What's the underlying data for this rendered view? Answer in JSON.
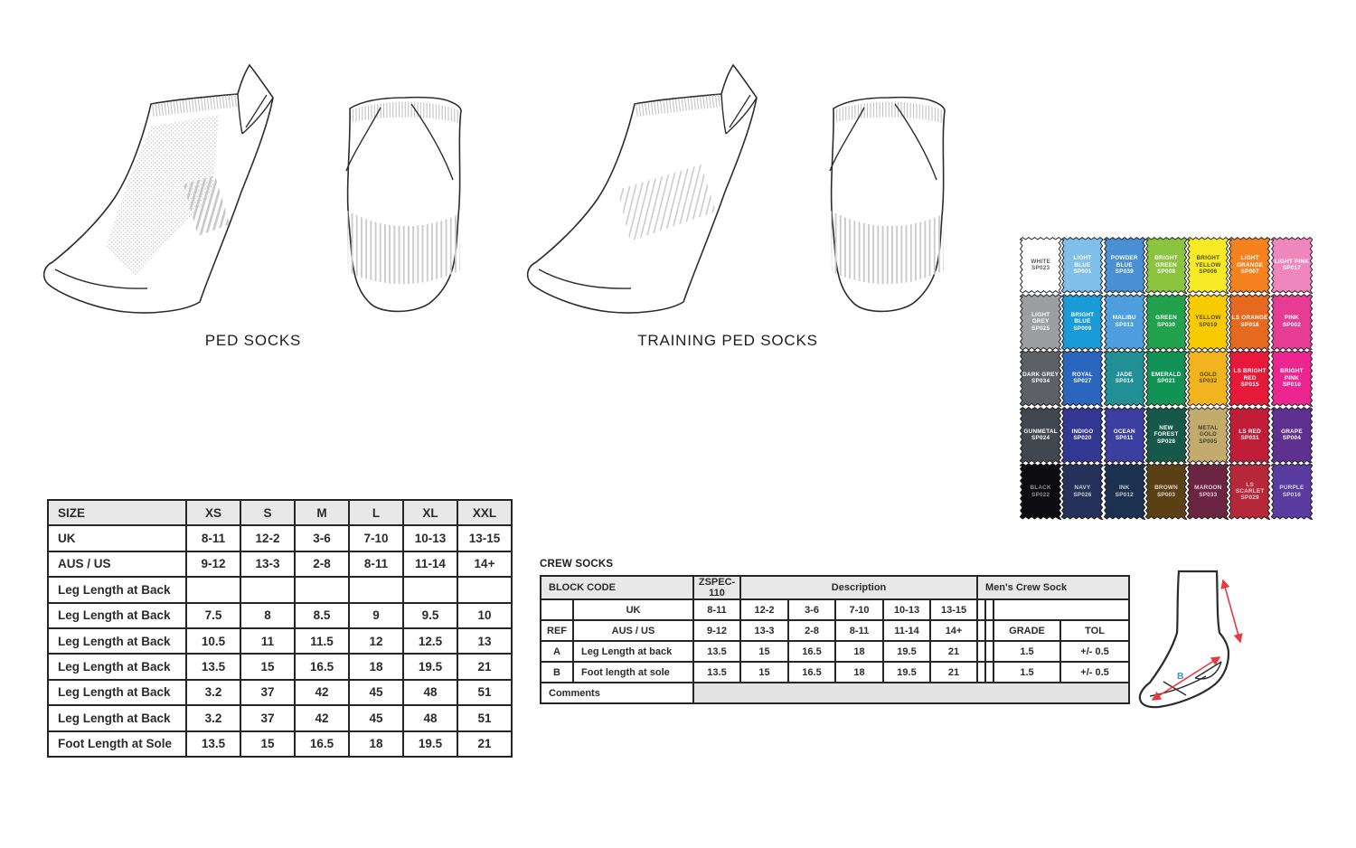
{
  "illustrations": {
    "ped_label": "PED SOCKS",
    "training_label": "TRAINING PED SOCKS"
  },
  "swatches": {
    "items": [
      {
        "name": "WHITE",
        "code": "SP023",
        "color": "#FFFFFF",
        "text": "#5a5a66"
      },
      {
        "name": "LIGHT BLUE",
        "code": "SP001",
        "color": "#7FBFE9",
        "text": "#ffffff"
      },
      {
        "name": "POWDER BLUE",
        "code": "SP039",
        "color": "#4A8FD4",
        "text": "#ffffff"
      },
      {
        "name": "BRIGHT GREEN",
        "code": "SP008",
        "color": "#8BC53F",
        "text": "#ffffff"
      },
      {
        "name": "BRIGHT YELLOW",
        "code": "SP006",
        "color": "#F6E926",
        "text": "#55531d"
      },
      {
        "name": "LIGHT ORANGE",
        "code": "SP007",
        "color": "#F5821F",
        "text": "#ffffff"
      },
      {
        "name": "LIGHT PINK",
        "code": "SP017",
        "color": "#EF86BD",
        "text": "#ffffff"
      },
      {
        "name": "LIGHT GREY",
        "code": "SP025",
        "color": "#9C9EA1",
        "text": "#ffffff"
      },
      {
        "name": "BRIGHT BLUE",
        "code": "SP009",
        "color": "#189BD7",
        "text": "#ffffff"
      },
      {
        "name": "MALIBU",
        "code": "SP013",
        "color": "#4C9EDC",
        "text": "#ffffff"
      },
      {
        "name": "GREEN",
        "code": "SP030",
        "color": "#23A24E",
        "text": "#ffffff"
      },
      {
        "name": "YELLOW",
        "code": "SP019",
        "color": "#F8CB00",
        "text": "#564a10"
      },
      {
        "name": "LS ORANGE",
        "code": "SP018",
        "color": "#E56A1F",
        "text": "#ffffff"
      },
      {
        "name": "PINK",
        "code": "SP002",
        "color": "#E63C93",
        "text": "#ffffff"
      },
      {
        "name": "DARK GREY",
        "code": "SP034",
        "color": "#5D6166",
        "text": "#ffffff"
      },
      {
        "name": "ROYAL",
        "code": "SP027",
        "color": "#2A66BD",
        "text": "#ffffff"
      },
      {
        "name": "JADE",
        "code": "SP014",
        "color": "#208F96",
        "text": "#ffffff"
      },
      {
        "name": "EMERALD",
        "code": "SP021",
        "color": "#109355",
        "text": "#ffffff"
      },
      {
        "name": "GOLD",
        "code": "SP032",
        "color": "#F1B41F",
        "text": "#564a10"
      },
      {
        "name": "LS BRIGHT RED",
        "code": "SP015",
        "color": "#E6193B",
        "text": "#ffffff"
      },
      {
        "name": "BRIGHT PINK",
        "code": "SP010",
        "color": "#EC2590",
        "text": "#ffffff"
      },
      {
        "name": "GUNMETAL",
        "code": "SP024",
        "color": "#41474F",
        "text": "#ffffff"
      },
      {
        "name": "INDIGO",
        "code": "SP020",
        "color": "#323794",
        "text": "#ffffff"
      },
      {
        "name": "OCEAN",
        "code": "SP011",
        "color": "#3A3E9E",
        "text": "#ffffff"
      },
      {
        "name": "NEW FOREST",
        "code": "SP028",
        "color": "#14594A",
        "text": "#ffffff"
      },
      {
        "name": "METAL GOLD",
        "code": "SP005",
        "color": "#C2AB6D",
        "text": "#4a4435"
      },
      {
        "name": "LS RED",
        "code": "SP031",
        "color": "#C01D38",
        "text": "#ffffff"
      },
      {
        "name": "GRAPE",
        "code": "SP004",
        "color": "#603090",
        "text": "#ffffff"
      },
      {
        "name": "BLACK",
        "code": "SP022",
        "color": "#0B0B10",
        "text": "#8f8f8f"
      },
      {
        "name": "NAVY",
        "code": "SP026",
        "color": "#253159",
        "text": "#c9ced9"
      },
      {
        "name": "INK",
        "code": "SP012",
        "color": "#1C3050",
        "text": "#c9ced9"
      },
      {
        "name": "BROWN",
        "code": "SP003",
        "color": "#5B4015",
        "text": "#e2d9c8"
      },
      {
        "name": "MAROON",
        "code": "SP033",
        "color": "#6C2443",
        "text": "#eacfd9"
      },
      {
        "name": "LS SCARLET",
        "code": "SP029",
        "color": "#B52839",
        "text": "#f3cace"
      },
      {
        "name": "PURPLE",
        "code": "SP016",
        "color": "#5A3B9F",
        "text": "#ded8f0"
      }
    ]
  },
  "size_table": {
    "headers": [
      "SIZE",
      "XS",
      "S",
      "M",
      "L",
      "XL",
      "XXL"
    ],
    "rows": [
      {
        "label": "UK",
        "values": [
          "8-11",
          "12-2",
          "3-6",
          "7-10",
          "10-13",
          "13-15"
        ]
      },
      {
        "label": "AUS / US",
        "values": [
          "9-12",
          "13-3",
          "2-8",
          "8-11",
          "11-14",
          "14+"
        ]
      },
      {
        "label": "Leg Length at Back",
        "values": [
          "",
          "",
          "",
          "",
          "",
          ""
        ]
      },
      {
        "label": "Leg Length at Back",
        "values": [
          "7.5",
          "8",
          "8.5",
          "9",
          "9.5",
          "10"
        ]
      },
      {
        "label": "Leg Length at Back",
        "values": [
          "10.5",
          "11",
          "11.5",
          "12",
          "12.5",
          "13"
        ]
      },
      {
        "label": "Leg Length at Back",
        "values": [
          "13.5",
          "15",
          "16.5",
          "18",
          "19.5",
          "21"
        ]
      },
      {
        "label": "Leg Length at Back",
        "values": [
          "3.2",
          "37",
          "42",
          "45",
          "48",
          "51"
        ]
      },
      {
        "label": "Leg Length at Back",
        "values": [
          "3.2",
          "37",
          "42",
          "45",
          "48",
          "51"
        ]
      },
      {
        "label": "Foot Length at Sole",
        "values": [
          "13.5",
          "15",
          "16.5",
          "18",
          "19.5",
          "21"
        ]
      }
    ]
  },
  "crew_table": {
    "title": "CREW SOCKS",
    "header": {
      "block_code": "BLOCK CODE",
      "spec": "ZSPEC-110",
      "description": "Description",
      "mens": "Men's Crew Sock"
    },
    "uk_row": {
      "label": "UK",
      "values": [
        "8-11",
        "12-2",
        "3-6",
        "7-10",
        "10-13",
        "13-15"
      ]
    },
    "aus_row": {
      "ref": "REF",
      "label": "AUS / US",
      "values": [
        "9-12",
        "13-3",
        "2-8",
        "8-11",
        "11-14",
        "14+"
      ],
      "grade": "GRADE",
      "tol": "TOL"
    },
    "rows": [
      {
        "ref": "A",
        "label": "Leg Length at back",
        "values": [
          "13.5",
          "15",
          "16.5",
          "18",
          "19.5",
          "21"
        ],
        "grade": "1.5",
        "tol": "+/- 0.5"
      },
      {
        "ref": "B",
        "label": "Foot length at sole",
        "values": [
          "13.5",
          "15",
          "16.5",
          "18",
          "19.5",
          "21"
        ],
        "grade": "1.5",
        "tol": "+/- 0.5"
      }
    ],
    "comments_label": "Comments"
  },
  "diagram": {
    "label_b": "B",
    "arrow_color": "#E93A42",
    "label_b_color": "#4a90d2"
  },
  "colors": {
    "table_header_bg": "#e8e8e8",
    "comments_fill": "#e3e3e3",
    "sketch_line": "#2c2c2c",
    "texture_grey": "#c9c9c9"
  }
}
